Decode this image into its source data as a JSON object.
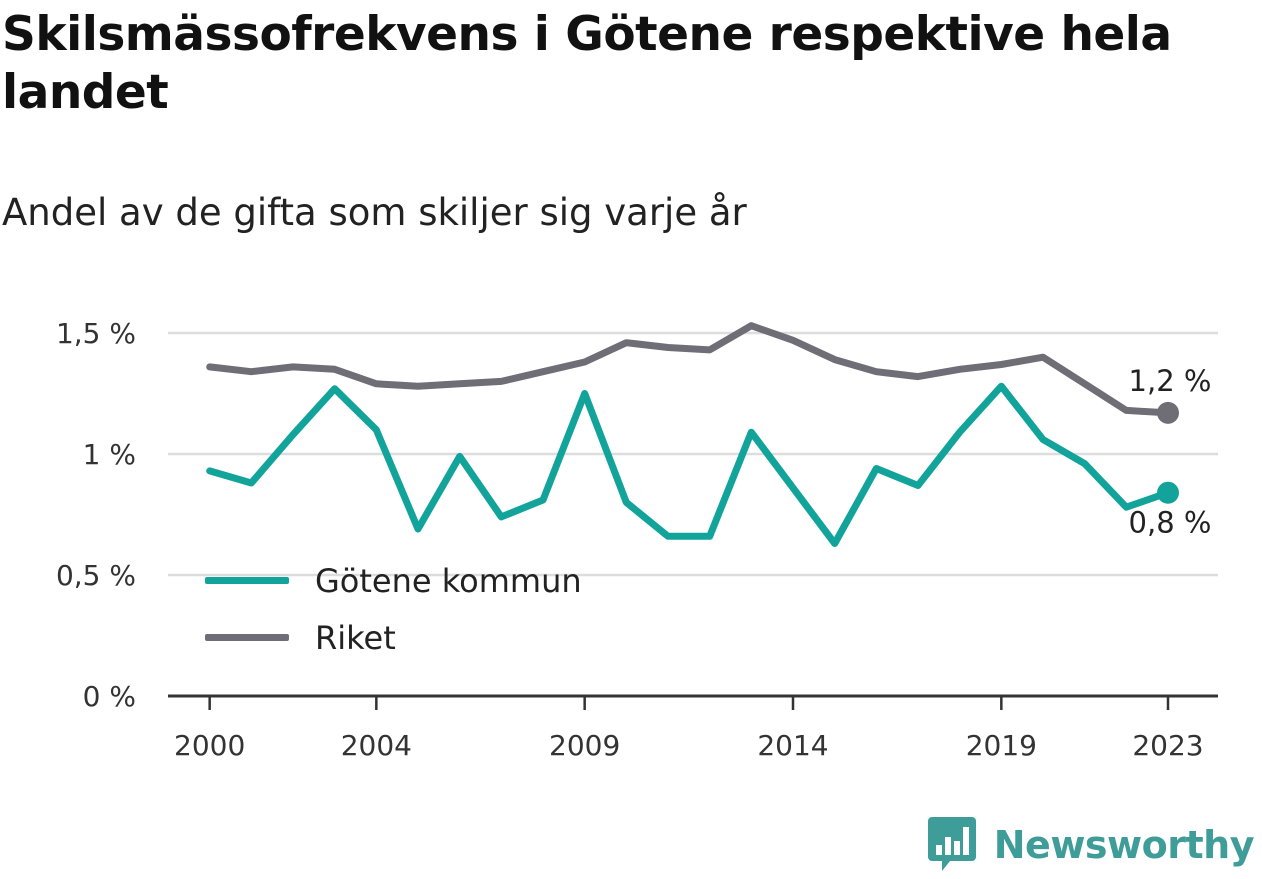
{
  "title": "Skilsmässofrekvens i Götene respektive hela landet",
  "subtitle": "Andel av de gifta som skiljer sig varje år",
  "brand": {
    "name": "Newsworthy",
    "icon": "bar-chart-speech-bubble-icon"
  },
  "colors": {
    "gotene": "#12a39a",
    "riket": "#6f6e76",
    "grid": "#dddddd",
    "axis": "#333333",
    "brand": "#3e9c99"
  },
  "chart_data": {
    "type": "line",
    "x": [
      2000,
      2001,
      2002,
      2003,
      2004,
      2005,
      2006,
      2007,
      2008,
      2009,
      2010,
      2011,
      2012,
      2013,
      2014,
      2015,
      2016,
      2017,
      2018,
      2019,
      2020,
      2021,
      2022,
      2023
    ],
    "xlim": [
      1999,
      2024.2
    ],
    "ylim": [
      0,
      1.5
    ],
    "grid": true,
    "legend_position": "bottom-left",
    "x_ticks": [
      {
        "value": 2000,
        "label": "2000"
      },
      {
        "value": 2004,
        "label": "2004"
      },
      {
        "value": 2009,
        "label": "2009"
      },
      {
        "value": 2014,
        "label": "2014"
      },
      {
        "value": 2019,
        "label": "2019"
      },
      {
        "value": 2023,
        "label": "2023"
      }
    ],
    "y_ticks": [
      {
        "value": 0,
        "label": "0 %"
      },
      {
        "value": 0.5,
        "label": "0,5 %"
      },
      {
        "value": 1,
        "label": "1 %"
      },
      {
        "value": 1.5,
        "label": "1,5 %"
      }
    ],
    "series": [
      {
        "key": "gotene",
        "name": "Götene kommun",
        "values": [
          0.93,
          0.88,
          1.08,
          1.27,
          1.1,
          0.69,
          0.99,
          0.74,
          0.81,
          1.25,
          0.8,
          0.66,
          0.66,
          1.09,
          0.86,
          0.63,
          0.94,
          0.87,
          1.09,
          1.28,
          1.06,
          0.96,
          0.78,
          0.84
        ],
        "end_label": "0,8 %"
      },
      {
        "key": "riket",
        "name": "Riket",
        "values": [
          1.36,
          1.34,
          1.36,
          1.35,
          1.29,
          1.28,
          1.29,
          1.3,
          1.34,
          1.38,
          1.46,
          1.44,
          1.43,
          1.53,
          1.47,
          1.39,
          1.34,
          1.32,
          1.35,
          1.37,
          1.4,
          1.29,
          1.18,
          1.17
        ],
        "end_label": "1,2 %"
      }
    ]
  }
}
